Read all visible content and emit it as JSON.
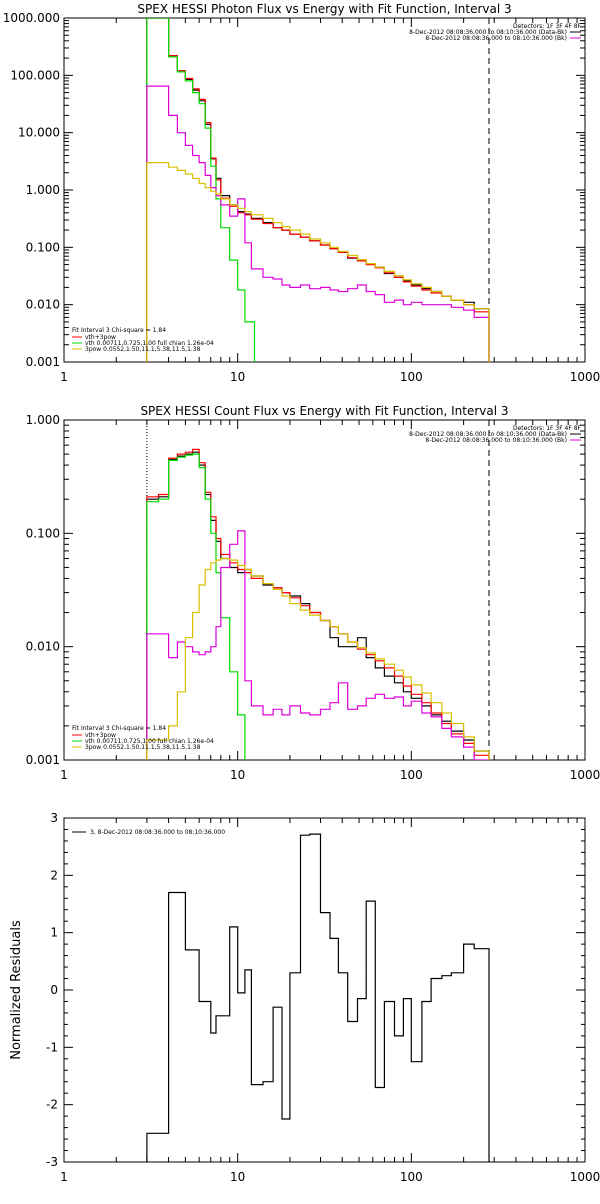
{
  "colors": {
    "black": "#000000",
    "red": "#ff0000",
    "green": "#00dd00",
    "magenta": "#dd00dd",
    "yellow": "#d8c000",
    "orange": "#ff8800"
  },
  "chart_data": [
    {
      "type": "line",
      "title": "SPEX HESSI Photon Flux vs Energy with Fit Function, Interval 3",
      "xscale": "log",
      "yscale": "log",
      "xlim": [
        1,
        1000
      ],
      "ylim": [
        0.001,
        1000
      ],
      "x_tick_labels": [
        "1",
        "10",
        "100",
        "1000"
      ],
      "y_tick_labels": [
        "0.001",
        "0.010",
        "0.100",
        "1.000",
        "10.000",
        "100.000",
        "1000.000"
      ],
      "legend_top_right": [
        "Detectors: 1F 3F 4F 8F",
        "8-Dec-2012 08:08:36.000 to 08:10:36.000 (Data-Bk)",
        "8-Dec-2012 08:08:36.000 to 08:10:36.000 (Bk)"
      ],
      "legend_bottom_left_title": "Fit Interval 3   Chi-square = 1.84",
      "legend_bottom_left": [
        "vth+3pow",
        "vth 0.00711,0.725,1.00  full chian 1.26e-04",
        "3pow 0.0552,1.50,11.1,5.38,11.5,1.38"
      ],
      "vlines": {
        "dotted": 3.0,
        "dashed": 280.0
      },
      "series": [
        {
          "color": "black",
          "edges": [
            3.0,
            3.5,
            4.0,
            4.5,
            5.0,
            5.5,
            6.0,
            6.5,
            7.0,
            7.5,
            8.0,
            9.0,
            10,
            11,
            12,
            14,
            16,
            18,
            20,
            23,
            26,
            30,
            34,
            38,
            43,
            49,
            55,
            62,
            70,
            80,
            90,
            100,
            115,
            130,
            150,
            170,
            200,
            230,
            280
          ],
          "values": [
            1000,
            1000,
            220,
            120,
            85,
            55,
            36,
            14,
            3.5,
            1.6,
            0.8,
            0.55,
            0.42,
            0.38,
            0.32,
            0.27,
            0.22,
            0.2,
            0.17,
            0.15,
            0.13,
            0.11,
            0.095,
            0.082,
            0.065,
            0.058,
            0.052,
            0.045,
            0.035,
            0.03,
            0.026,
            0.022,
            0.019,
            0.017,
            0.014,
            0.012,
            0.011,
            0.0085
          ]
        },
        {
          "color": "red",
          "edges": [
            3.0,
            3.5,
            4.0,
            4.5,
            5.0,
            5.5,
            6.0,
            6.5,
            7.0,
            7.5,
            8.0,
            9.0,
            10,
            11,
            12,
            14,
            16,
            18,
            20,
            23,
            26,
            30,
            34,
            38,
            43,
            49,
            55,
            62,
            70,
            80,
            90,
            100,
            115,
            130,
            150,
            170,
            200,
            230,
            280
          ],
          "values": [
            1000,
            1000,
            220,
            120,
            88,
            58,
            38,
            15,
            3.6,
            1.5,
            0.72,
            0.52,
            0.4,
            0.37,
            0.31,
            0.26,
            0.22,
            0.2,
            0.17,
            0.15,
            0.13,
            0.11,
            0.095,
            0.082,
            0.066,
            0.058,
            0.05,
            0.044,
            0.036,
            0.03,
            0.025,
            0.021,
            0.018,
            0.016,
            0.014,
            0.012,
            0.01,
            0.0075
          ]
        },
        {
          "color": "green",
          "edges": [
            3.0,
            3.5,
            4.0,
            4.5,
            5.0,
            5.5,
            6.0,
            6.5,
            7.0,
            7.5,
            8.0,
            9.0,
            10,
            11,
            12.5
          ],
          "values": [
            1000,
            1000,
            210,
            115,
            80,
            50,
            32,
            12,
            2.6,
            0.7,
            0.22,
            0.06,
            0.018,
            0.005,
            0.001
          ]
        },
        {
          "color": "magenta",
          "edges": [
            3.0,
            3.5,
            4.0,
            4.5,
            5.0,
            5.5,
            6.0,
            6.5,
            7.0,
            7.5,
            8.0,
            9.0,
            10,
            11,
            12,
            14,
            16,
            18,
            20,
            23,
            26,
            30,
            34,
            38,
            43,
            49,
            55,
            62,
            70,
            80,
            90,
            100,
            115,
            130,
            150,
            170,
            200,
            230,
            280
          ],
          "values": [
            65,
            65,
            20,
            10,
            6,
            4,
            3,
            1.8,
            1.1,
            0.8,
            0.55,
            0.35,
            0.7,
            0.12,
            0.042,
            0.03,
            0.028,
            0.022,
            0.02,
            0.022,
            0.019,
            0.02,
            0.018,
            0.017,
            0.019,
            0.022,
            0.017,
            0.015,
            0.011,
            0.012,
            0.01,
            0.011,
            0.01,
            0.01,
            0.01,
            0.009,
            0.008,
            0.006
          ]
        },
        {
          "color": "yellow",
          "edges": [
            3.0,
            3.5,
            4.0,
            4.5,
            5.0,
            5.5,
            6.0,
            6.5,
            7.0,
            7.5,
            8.0,
            9.0,
            10,
            11,
            12,
            14,
            16,
            18,
            20,
            23,
            26,
            30,
            34,
            38,
            43,
            49,
            55,
            62,
            70,
            80,
            90,
            100,
            115,
            130,
            150,
            170,
            200,
            230,
            280
          ],
          "values": [
            3,
            3,
            2.5,
            2.2,
            1.9,
            1.6,
            1.3,
            1.1,
            0.95,
            0.85,
            0.7,
            0.55,
            0.48,
            0.42,
            0.37,
            0.32,
            0.27,
            0.23,
            0.2,
            0.17,
            0.14,
            0.12,
            0.1,
            0.085,
            0.072,
            0.061,
            0.052,
            0.045,
            0.038,
            0.032,
            0.027,
            0.023,
            0.02,
            0.017,
            0.014,
            0.012,
            0.01,
            0.0085
          ]
        }
      ]
    },
    {
      "type": "line",
      "title": "SPEX HESSI Count Flux vs Energy with Fit Function, Interval 3",
      "xscale": "log",
      "yscale": "log",
      "xlim": [
        1,
        1000
      ],
      "ylim": [
        0.001,
        1.0
      ],
      "x_tick_labels": [
        "1",
        "10",
        "100",
        "1000"
      ],
      "y_tick_labels": [
        "0.001",
        "0.010",
        "0.100",
        "1.000"
      ],
      "legend_top_right": [
        "Detectors: 1F 3F 4F 8F",
        "8-Dec-2012 08:08:36.000 to 08:10:36.000 (Data-Bk)",
        "8-Dec-2012 08:08:36.000 to 08:10:36.000 (Bk)"
      ],
      "legend_bottom_left_title": "Fit Interval 3   Chi-square = 1.84",
      "legend_bottom_left": [
        "vth+3pow",
        "vth 0.00711,0.725,1.00  full chian 1.26e-04",
        "3pow 0.0552,1.50,11.1,5.38,11.5,1.38"
      ],
      "vlines": {
        "dotted": 3.0,
        "dashed": 280.0
      },
      "series": [
        {
          "color": "black",
          "edges": [
            3.0,
            3.5,
            4.0,
            4.5,
            5.0,
            5.5,
            6.0,
            6.5,
            7.0,
            7.5,
            8.0,
            9.0,
            10,
            11,
            12,
            14,
            16,
            18,
            20,
            23,
            26,
            30,
            34,
            38,
            43,
            49,
            55,
            62,
            70,
            80,
            90,
            100,
            115,
            130,
            150,
            170,
            200,
            230,
            280
          ],
          "values": [
            0.2,
            0.21,
            0.45,
            0.48,
            0.5,
            0.52,
            0.4,
            0.22,
            0.13,
            0.085,
            0.06,
            0.05,
            0.045,
            0.048,
            0.042,
            0.035,
            0.033,
            0.03,
            0.028,
            0.024,
            0.02,
            0.017,
            0.012,
            0.01,
            0.01,
            0.012,
            0.008,
            0.0065,
            0.0055,
            0.0048,
            0.004,
            0.0035,
            0.003,
            0.0025,
            0.0022,
            0.0018,
            0.0015,
            0.0012
          ]
        },
        {
          "color": "red",
          "edges": [
            3.0,
            3.5,
            4.0,
            4.5,
            5.0,
            5.5,
            6.0,
            6.5,
            7.0,
            7.5,
            8.0,
            9.0,
            10,
            11,
            12,
            14,
            16,
            18,
            20,
            23,
            26,
            30,
            34,
            38,
            43,
            49,
            55,
            62,
            70,
            80,
            90,
            100,
            115,
            130,
            150,
            170,
            200,
            230,
            280
          ],
          "values": [
            0.21,
            0.22,
            0.46,
            0.5,
            0.52,
            0.55,
            0.42,
            0.23,
            0.14,
            0.09,
            0.065,
            0.055,
            0.048,
            0.045,
            0.04,
            0.036,
            0.033,
            0.03,
            0.027,
            0.023,
            0.02,
            0.017,
            0.015,
            0.013,
            0.011,
            0.0095,
            0.0085,
            0.0075,
            0.0065,
            0.0055,
            0.0045,
            0.0038,
            0.0032,
            0.0026,
            0.0021,
            0.0017,
            0.0014,
            0.0011
          ]
        },
        {
          "color": "green",
          "edges": [
            3.0,
            3.5,
            4.0,
            4.5,
            5.0,
            5.5,
            6.0,
            6.5,
            7.0,
            7.5,
            8.0,
            9.0,
            10,
            11
          ],
          "values": [
            0.19,
            0.2,
            0.44,
            0.47,
            0.49,
            0.5,
            0.38,
            0.2,
            0.1,
            0.045,
            0.018,
            0.006,
            0.0025,
            0.001
          ]
        },
        {
          "color": "magenta",
          "edges": [
            3.0,
            3.5,
            4.0,
            4.5,
            5.0,
            5.5,
            6.0,
            6.5,
            7.0,
            7.5,
            8.0,
            9.0,
            10,
            11,
            12,
            14,
            16,
            18,
            20,
            23,
            26,
            30,
            34,
            38,
            43,
            49,
            55,
            62,
            70,
            80,
            90,
            100,
            115,
            130,
            150,
            170,
            200,
            230,
            280
          ],
          "values": [
            0.013,
            0.013,
            0.008,
            0.011,
            0.01,
            0.009,
            0.0085,
            0.009,
            0.01,
            0.015,
            0.05,
            0.08,
            0.105,
            0.005,
            0.003,
            0.0025,
            0.0028,
            0.0025,
            0.003,
            0.0026,
            0.0025,
            0.0028,
            0.0032,
            0.0048,
            0.0028,
            0.003,
            0.0035,
            0.0038,
            0.0035,
            0.0036,
            0.003,
            0.0033,
            0.0026,
            0.0024,
            0.0019,
            0.0016,
            0.0013,
            0.001
          ]
        },
        {
          "color": "yellow",
          "edges": [
            3.0,
            3.5,
            4.0,
            4.5,
            5.0,
            5.5,
            6.0,
            6.5,
            7.0,
            7.5,
            8.0,
            9.0,
            10,
            11,
            12,
            14,
            16,
            18,
            20,
            23,
            26,
            30,
            34,
            38,
            43,
            49,
            55,
            62,
            70,
            80,
            90,
            100,
            115,
            130,
            150,
            170,
            200,
            230,
            280
          ],
          "values": [
            0.0015,
            0.0015,
            0.002,
            0.004,
            0.012,
            0.02,
            0.035,
            0.048,
            0.055,
            0.058,
            0.06,
            0.058,
            0.052,
            0.048,
            0.042,
            0.036,
            0.032,
            0.028,
            0.024,
            0.021,
            0.019,
            0.017,
            0.015,
            0.013,
            0.011,
            0.0098,
            0.0088,
            0.0078,
            0.007,
            0.0062,
            0.0054,
            0.0046,
            0.0039,
            0.0032,
            0.0026,
            0.0021,
            0.0016,
            0.0012
          ]
        }
      ]
    },
    {
      "type": "line",
      "title": "",
      "xscale": "log",
      "xlim": [
        1,
        1000
      ],
      "ylim": [
        -3,
        3
      ],
      "ylabel": "Normalized Residuals",
      "x_tick_labels": [
        "1",
        "10",
        "100",
        "1000"
      ],
      "y_tick_labels": [
        "-3",
        "-2",
        "-1",
        "0",
        "1",
        "2",
        "3"
      ],
      "legend_top_left": "3,  8-Dec-2012 08:08:36.000 to 08:10:36.000",
      "series": [
        {
          "color": "black",
          "edges": [
            3.0,
            3.5,
            4.0,
            4.5,
            5.0,
            5.5,
            6.0,
            6.5,
            7.0,
            7.5,
            8.0,
            9.0,
            10,
            11,
            12,
            14,
            16,
            18,
            20,
            23,
            26,
            30,
            34,
            38,
            43,
            49,
            55,
            62,
            70,
            80,
            90,
            100,
            115,
            130,
            150,
            170,
            200,
            230,
            280
          ],
          "values": [
            -2.5,
            -2.5,
            1.7,
            1.7,
            0.7,
            0.7,
            -0.2,
            -0.2,
            -0.75,
            -0.45,
            -0.45,
            1.1,
            -0.05,
            0.35,
            -1.65,
            -1.6,
            -0.3,
            -2.25,
            0.3,
            2.7,
            2.72,
            1.35,
            0.9,
            0.3,
            -0.55,
            -0.15,
            1.55,
            -1.7,
            -0.2,
            -0.8,
            -0.15,
            -1.25,
            -0.2,
            0.2,
            0.25,
            0.3,
            0.8,
            0.72
          ]
        }
      ]
    }
  ]
}
